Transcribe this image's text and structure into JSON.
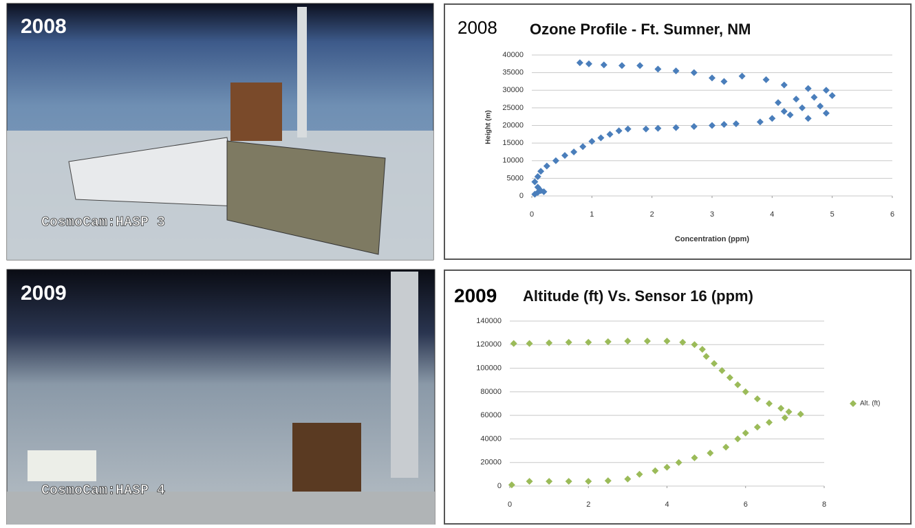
{
  "photos": [
    {
      "year": "2008",
      "caption": "CosmoCam:HASP 3"
    },
    {
      "year": "2009",
      "caption": "CosmoCam:HASP 4"
    }
  ],
  "chart_data": [
    {
      "type": "scatter",
      "year": "2008",
      "title": "Ozone Profile - Ft. Sumner, NM",
      "x_label": "Concentration (ppm)",
      "y_label": "Height (m)",
      "xlim": [
        0,
        6
      ],
      "xticks": [
        0,
        1,
        2,
        3,
        4,
        5,
        6
      ],
      "ylim": [
        0,
        40000
      ],
      "yticks": [
        0,
        5000,
        10000,
        15000,
        20000,
        25000,
        30000,
        35000,
        40000
      ],
      "grid": true,
      "legend": false,
      "series": [
        {
          "color": "#4a7ebb",
          "x": [
            0.05,
            0.1,
            0.15,
            0.2,
            0.1,
            0.05,
            0.1,
            0.15,
            0.25,
            0.4,
            0.55,
            0.7,
            0.85,
            1.0,
            1.15,
            1.3,
            1.45,
            1.6,
            1.9,
            2.1,
            2.4,
            2.7,
            3.0,
            3.2,
            3.4,
            3.8,
            4.0,
            4.3,
            4.6,
            4.9,
            4.2,
            4.5,
            4.8,
            4.1,
            4.4,
            4.7,
            5.0,
            4.9,
            4.6,
            4.2,
            3.9,
            3.5,
            3.2,
            3.0,
            2.7,
            2.4,
            2.1,
            1.8,
            1.5,
            1.2,
            0.95,
            0.8
          ],
          "values": [
            500,
            1000,
            1500,
            1200,
            2500,
            4000,
            5500,
            7000,
            8500,
            10000,
            11500,
            12500,
            14000,
            15500,
            16500,
            17500,
            18500,
            19000,
            19000,
            19200,
            19400,
            19700,
            20000,
            20300,
            20500,
            21000,
            22000,
            23000,
            22000,
            23500,
            24000,
            25000,
            25500,
            26500,
            27500,
            28000,
            28500,
            30000,
            30500,
            31500,
            33000,
            34000,
            32500,
            33500,
            35000,
            35500,
            36000,
            37000,
            37000,
            37200,
            37500,
            37800
          ]
        }
      ]
    },
    {
      "type": "scatter",
      "year": "2009",
      "title": "Altitude (ft) Vs. Sensor 16 (ppm)",
      "xlim": [
        0,
        8
      ],
      "xticks": [
        0,
        2,
        4,
        6,
        8
      ],
      "ylim": [
        0,
        140000
      ],
      "yticks": [
        0,
        20000,
        40000,
        60000,
        80000,
        100000,
        120000,
        140000
      ],
      "grid": true,
      "legend": "right",
      "series": [
        {
          "name": "Alt. (ft)",
          "color": "#9bbb59",
          "x": [
            0.1,
            0.5,
            1,
            1.5,
            2,
            2.5,
            3,
            3.5,
            4,
            4.4,
            4.7,
            4.9,
            5.0,
            5.2,
            5.4,
            5.6,
            5.8,
            6.0,
            6.3,
            6.6,
            6.9,
            7.1,
            7.4,
            7.0,
            6.6,
            6.3,
            6.0,
            5.8,
            5.5,
            5.1,
            4.7,
            4.3,
            4.0,
            3.7,
            3.3,
            3.0,
            2.5,
            2,
            1.5,
            1,
            0.5,
            0.05
          ],
          "values": [
            121000,
            121000,
            121500,
            122000,
            122000,
            122500,
            123000,
            123000,
            123000,
            122000,
            120000,
            116000,
            110000,
            104000,
            98000,
            92000,
            86000,
            80000,
            74000,
            70000,
            66000,
            63000,
            61000,
            58000,
            54000,
            50000,
            45000,
            40000,
            33000,
            28000,
            24000,
            20000,
            16000,
            13000,
            10000,
            6000,
            4500,
            4000,
            4000,
            4000,
            4000,
            1000
          ]
        }
      ]
    }
  ]
}
